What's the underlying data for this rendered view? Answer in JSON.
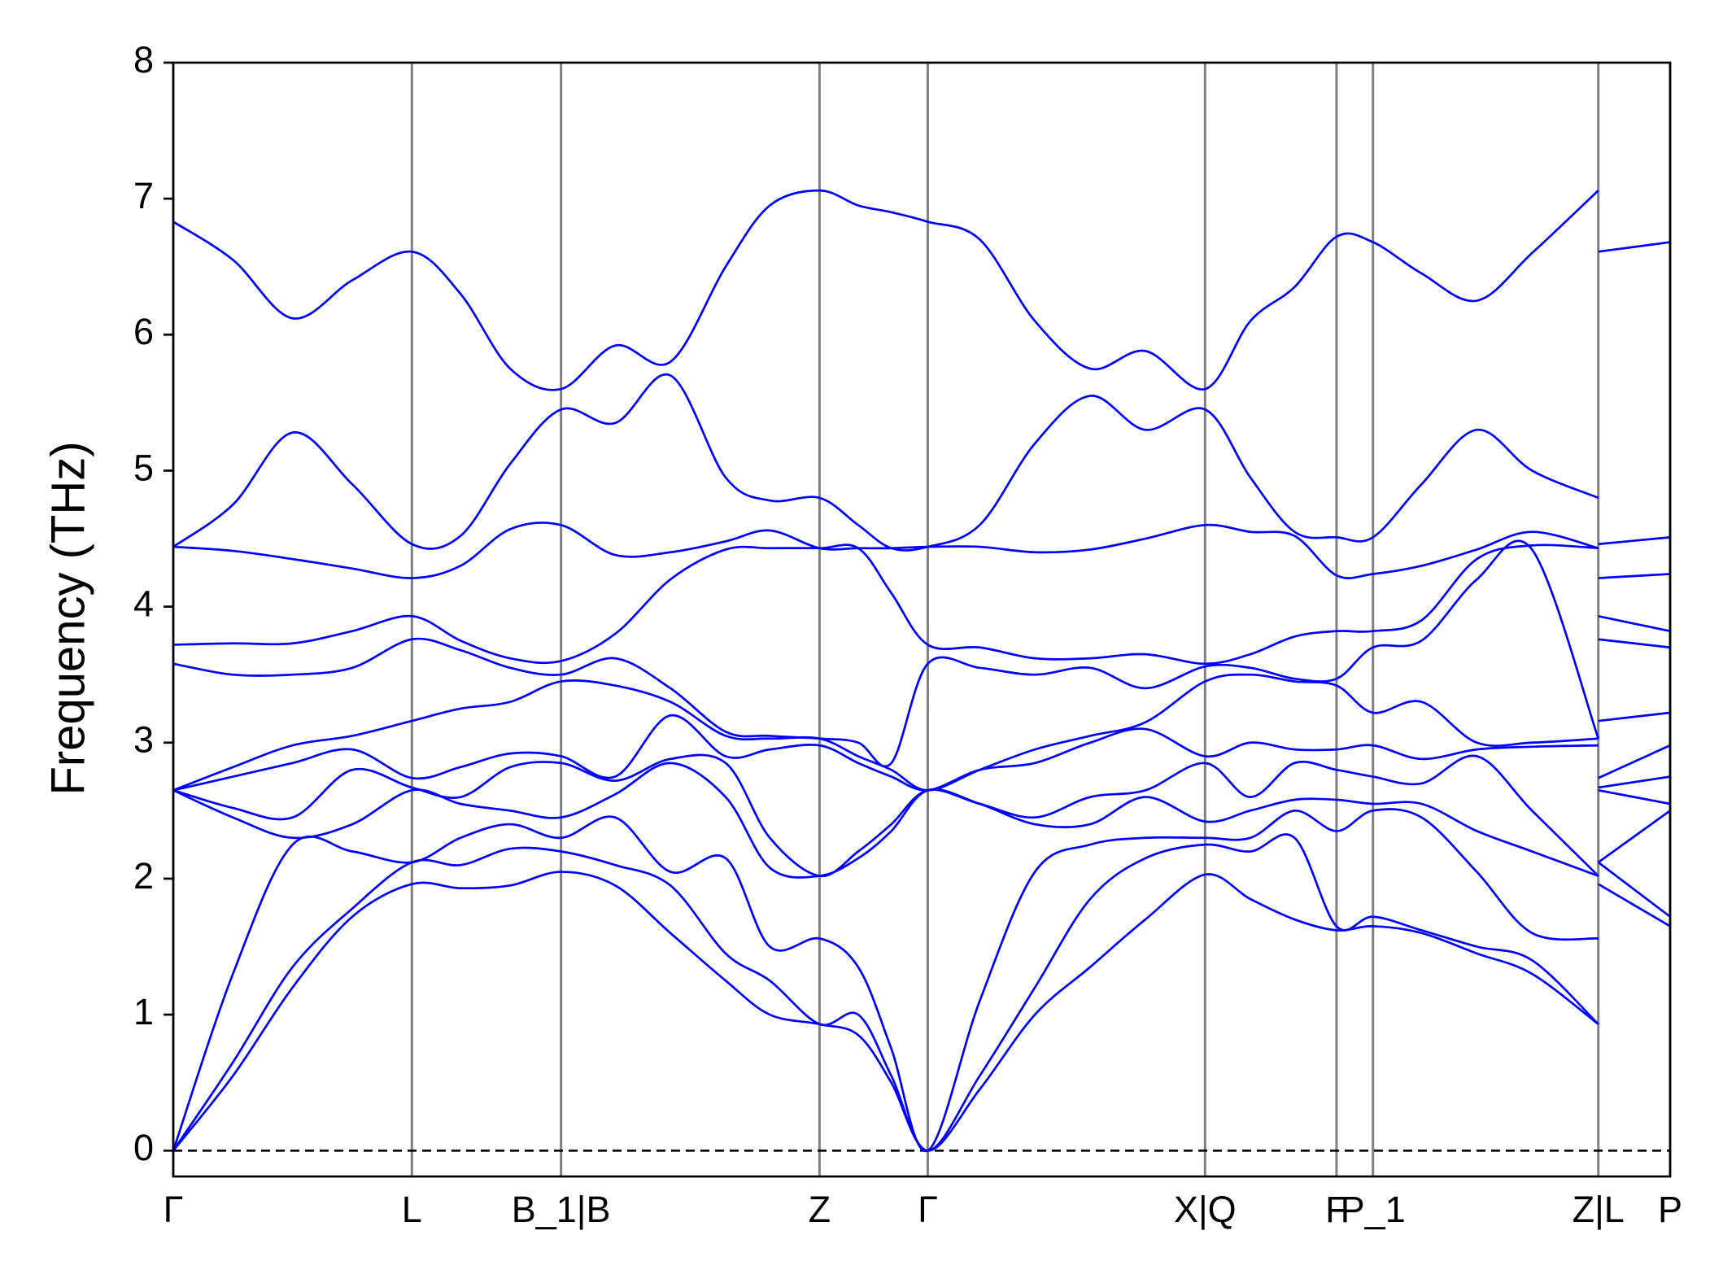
{
  "chart_data": {
    "type": "line",
    "y_label": "Frequency (THz)",
    "color": "#0000ff",
    "grid": true,
    "zero_line": true,
    "xlim": [
      0,
      13.55
    ],
    "ylim": [
      -0.19,
      8
    ],
    "yticks": [
      0,
      1,
      2,
      3,
      4,
      5,
      6,
      7,
      8
    ],
    "xticks": [
      {
        "value": 0,
        "label": "Γ"
      },
      {
        "value": 2.16,
        "label": "L"
      },
      {
        "value": 3.51,
        "label": "B_1|B"
      },
      {
        "value": 5.85,
        "label": "Z"
      },
      {
        "value": 6.83,
        "label": "Γ"
      },
      {
        "value": 9.34,
        "label": "X|Q"
      },
      {
        "value": 10.53,
        "label": "F"
      },
      {
        "value": 10.86,
        "label": "P_1"
      },
      {
        "value": 12.9,
        "label": "Z|L"
      },
      {
        "value": 13.55,
        "label": "P"
      }
    ],
    "x": [
      0,
      0.54,
      1.08,
      1.62,
      2.16,
      2.6,
      3.05,
      3.51,
      4.0,
      4.5,
      5.0,
      5.4,
      5.85,
      6.2,
      6.5,
      6.83,
      7.3,
      7.8,
      8.3,
      8.8,
      9.34,
      9.75,
      10.15,
      10.53,
      10.86,
      11.3,
      11.8,
      12.3,
      12.9,
      12.9,
      12.9,
      13.55
    ],
    "series": [
      {
        "values": [
          0,
          0.55,
          1.2,
          1.72,
          1.96,
          1.93,
          1.95,
          2.05,
          1.95,
          1.6,
          1.25,
          1.0,
          0.93,
          0.85,
          0.5,
          0,
          0.45,
          1.0,
          1.35,
          1.7,
          2.03,
          1.85,
          1.7,
          1.62,
          1.65,
          1.6,
          1.45,
          1.3,
          0.93,
          null,
          1.96,
          1.65
        ]
      },
      {
        "values": [
          0,
          0.65,
          1.35,
          1.78,
          2.12,
          2.1,
          2.22,
          2.2,
          2.1,
          1.95,
          1.45,
          1.25,
          0.93,
          1.0,
          0.55,
          0,
          0.55,
          1.2,
          1.85,
          2.15,
          2.25,
          2.2,
          2.3,
          1.65,
          1.72,
          1.62,
          1.5,
          1.4,
          0.93,
          null,
          2.12,
          1.72
        ]
      },
      {
        "values": [
          0,
          1.3,
          2.25,
          2.2,
          2.12,
          2.3,
          2.4,
          2.3,
          2.45,
          2.05,
          2.15,
          1.5,
          1.56,
          1.35,
          0.75,
          0,
          1.1,
          2.05,
          2.25,
          2.3,
          2.3,
          2.3,
          2.5,
          2.35,
          2.5,
          2.45,
          2.05,
          1.6,
          1.56,
          null,
          2.12,
          2.5
        ]
      },
      {
        "values": [
          2.65,
          2.45,
          2.3,
          2.4,
          2.65,
          2.55,
          2.5,
          2.45,
          2.62,
          2.85,
          2.6,
          2.08,
          2.02,
          2.15,
          2.35,
          2.65,
          2.55,
          2.4,
          2.4,
          2.6,
          2.42,
          2.5,
          2.58,
          2.58,
          2.55,
          2.55,
          2.35,
          2.2,
          2.02,
          null,
          2.65,
          2.55
        ]
      },
      {
        "values": [
          2.65,
          2.52,
          2.45,
          2.8,
          2.67,
          2.6,
          2.82,
          2.85,
          2.72,
          2.88,
          2.85,
          2.3,
          2.02,
          2.2,
          2.4,
          2.65,
          2.55,
          2.45,
          2.6,
          2.65,
          2.85,
          2.6,
          2.85,
          2.8,
          2.75,
          2.7,
          2.9,
          2.5,
          2.02,
          null,
          2.67,
          2.75
        ]
      },
      {
        "values": [
          2.65,
          2.75,
          2.85,
          2.95,
          2.74,
          2.82,
          2.92,
          2.9,
          2.75,
          3.2,
          2.9,
          2.95,
          2.98,
          2.85,
          2.75,
          2.65,
          2.8,
          2.85,
          3.0,
          3.1,
          2.9,
          3.0,
          2.95,
          2.95,
          2.98,
          2.88,
          2.95,
          2.97,
          2.98,
          null,
          2.74,
          2.98
        ]
      },
      {
        "values": [
          2.65,
          2.82,
          2.98,
          3.05,
          3.16,
          3.25,
          3.3,
          3.45,
          3.42,
          3.3,
          3.05,
          3.03,
          3.03,
          2.9,
          2.8,
          2.65,
          2.8,
          2.95,
          3.05,
          3.15,
          3.45,
          3.5,
          3.45,
          3.42,
          3.22,
          3.3,
          3.0,
          3.0,
          3.03,
          null,
          3.16,
          3.22
        ]
      },
      {
        "values": [
          3.58,
          3.5,
          3.5,
          3.55,
          3.76,
          3.68,
          3.55,
          3.5,
          3.62,
          3.4,
          3.08,
          3.05,
          3.03,
          3.0,
          2.85,
          3.58,
          3.55,
          3.5,
          3.55,
          3.4,
          3.56,
          3.55,
          3.47,
          3.47,
          3.7,
          3.75,
          4.2,
          4.42,
          3.03,
          null,
          3.76,
          3.7
        ]
      },
      {
        "values": [
          3.72,
          3.73,
          3.73,
          3.82,
          3.93,
          3.75,
          3.62,
          3.6,
          3.8,
          4.2,
          4.42,
          4.43,
          4.43,
          4.43,
          4.1,
          3.72,
          3.7,
          3.62,
          3.62,
          3.65,
          3.58,
          3.65,
          3.78,
          3.82,
          3.82,
          3.9,
          4.35,
          4.45,
          4.43,
          null,
          3.93,
          3.82
        ]
      },
      {
        "values": [
          4.44,
          4.41,
          4.35,
          4.28,
          4.21,
          4.3,
          4.57,
          4.6,
          4.38,
          4.4,
          4.48,
          4.56,
          4.43,
          4.43,
          4.43,
          4.44,
          4.44,
          4.4,
          4.42,
          4.5,
          4.6,
          4.55,
          4.52,
          4.23,
          4.24,
          4.3,
          4.42,
          4.55,
          4.43,
          null,
          4.21,
          4.24
        ]
      },
      {
        "values": [
          4.44,
          4.75,
          5.28,
          4.9,
          4.46,
          4.52,
          5.05,
          5.45,
          5.35,
          5.7,
          4.95,
          4.78,
          4.8,
          4.6,
          4.43,
          4.44,
          4.6,
          5.2,
          5.55,
          5.3,
          5.45,
          4.95,
          4.55,
          4.51,
          4.51,
          4.9,
          5.3,
          5.0,
          4.8,
          null,
          4.46,
          4.51
        ]
      },
      {
        "values": [
          6.83,
          6.55,
          6.12,
          6.4,
          6.61,
          6.3,
          5.75,
          5.6,
          5.92,
          5.8,
          6.5,
          6.95,
          7.06,
          6.95,
          6.9,
          6.83,
          6.7,
          6.1,
          5.75,
          5.88,
          5.6,
          6.1,
          6.35,
          6.72,
          6.68,
          6.45,
          6.25,
          6.6,
          7.06,
          null,
          6.61,
          6.68
        ]
      }
    ]
  }
}
